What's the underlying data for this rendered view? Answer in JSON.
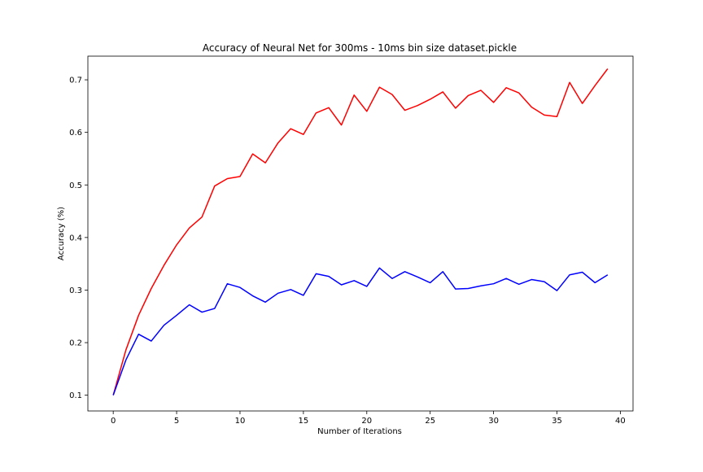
{
  "chart_data": {
    "type": "line",
    "title": "Accuracy of Neural Net for 300ms - 10ms bin size dataset.pickle",
    "xlabel": "Number of Iterations",
    "ylabel": "Accuracy (%)",
    "xlim": [
      -2,
      41
    ],
    "ylim": [
      0.07,
      0.745
    ],
    "xticks": [
      0,
      5,
      10,
      15,
      20,
      25,
      30,
      35,
      40
    ],
    "yticks": [
      0.1,
      0.2,
      0.3,
      0.4,
      0.5,
      0.6,
      0.7
    ],
    "grid": false,
    "legend": "none",
    "series": [
      {
        "color": "#ff0000",
        "x": [
          0,
          1,
          2,
          3,
          4,
          5,
          6,
          7,
          8,
          9,
          10,
          11,
          12,
          13,
          14,
          15,
          16,
          17,
          18,
          19,
          20,
          21,
          22,
          23,
          24,
          25,
          26,
          27,
          28,
          29,
          30,
          31,
          32,
          33,
          34,
          35,
          36,
          37,
          38,
          39
        ],
        "values": [
          0.1,
          0.186,
          0.252,
          0.303,
          0.347,
          0.386,
          0.418,
          0.439,
          0.498,
          0.512,
          0.516,
          0.559,
          0.542,
          0.58,
          0.607,
          0.596,
          0.637,
          0.647,
          0.614,
          0.671,
          0.64,
          0.686,
          0.672,
          0.642,
          0.651,
          0.663,
          0.677,
          0.646,
          0.67,
          0.68,
          0.657,
          0.685,
          0.675,
          0.648,
          0.633,
          0.63,
          0.695,
          0.655,
          0.689,
          0.721
        ]
      },
      {
        "color": "#0000ff",
        "x": [
          0,
          1,
          2,
          3,
          4,
          5,
          6,
          7,
          8,
          9,
          10,
          11,
          12,
          13,
          14,
          15,
          16,
          17,
          18,
          19,
          20,
          21,
          22,
          23,
          24,
          25,
          26,
          27,
          28,
          29,
          30,
          31,
          32,
          33,
          34,
          35,
          36,
          37,
          38,
          39
        ],
        "values": [
          0.1,
          0.167,
          0.216,
          0.203,
          0.233,
          0.252,
          0.272,
          0.258,
          0.265,
          0.312,
          0.305,
          0.289,
          0.277,
          0.294,
          0.301,
          0.29,
          0.331,
          0.326,
          0.31,
          0.318,
          0.307,
          0.342,
          0.322,
          0.335,
          0.325,
          0.314,
          0.335,
          0.302,
          0.303,
          0.308,
          0.312,
          0.322,
          0.311,
          0.32,
          0.316,
          0.299,
          0.329,
          0.334,
          0.314,
          0.329
        ]
      }
    ]
  }
}
